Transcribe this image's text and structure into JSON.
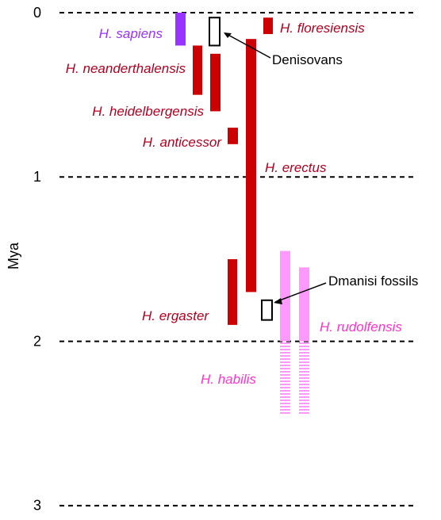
{
  "chart_data": {
    "type": "range-bar",
    "ylabel": "Mya",
    "ylim": [
      0,
      3
    ],
    "yticks": [
      0,
      1,
      2,
      3
    ],
    "colors": {
      "red": "#cc0000",
      "purple": "#9933ff",
      "pink": "#ff99ff",
      "pink_text": "#ff33cc",
      "red_text": "#b00020",
      "purple_text": "#9933ff"
    },
    "bars": [
      {
        "id": "sapiens",
        "start": 0.0,
        "end": 0.2,
        "color": "purple",
        "fill": "solid"
      },
      {
        "id": "neanderthalensis",
        "start": 0.2,
        "end": 0.5,
        "color": "red",
        "fill": "solid"
      },
      {
        "id": "heidelbergensis",
        "start": 0.25,
        "end": 0.6,
        "color": "red",
        "fill": "solid"
      },
      {
        "id": "anticessor",
        "start": 0.7,
        "end": 0.8,
        "color": "red",
        "fill": "solid"
      },
      {
        "id": "ergaster",
        "start": 1.5,
        "end": 1.9,
        "color": "red",
        "fill": "solid"
      },
      {
        "id": "erectus",
        "start": 0.16,
        "end": 1.7,
        "color": "red",
        "fill": "solid"
      },
      {
        "id": "floresiensis",
        "start": 0.03,
        "end": 0.13,
        "color": "red",
        "fill": "solid"
      },
      {
        "id": "rudolfensis_solid",
        "start": 1.45,
        "end": 2.0,
        "color": "pink",
        "fill": "solid"
      },
      {
        "id": "rudolfensis_hatch",
        "start": 2.0,
        "end": 2.45,
        "color": "pink",
        "fill": "hatched"
      },
      {
        "id": "habilis_solid",
        "start": 1.55,
        "end": 2.0,
        "color": "pink",
        "fill": "solid"
      },
      {
        "id": "habilis_hatch",
        "start": 2.0,
        "end": 2.45,
        "color": "pink",
        "fill": "hatched"
      },
      {
        "id": "denisovans",
        "start": 0.03,
        "end": 0.2,
        "color": "outline",
        "fill": "none"
      },
      {
        "id": "dmanisi",
        "start": 1.75,
        "end": 1.87,
        "color": "outline",
        "fill": "none"
      }
    ],
    "labels": {
      "sapiens": "H. sapiens",
      "neanderthalensis": "H. neanderthalensis",
      "heidelbergensis": "H. heidelbergensis",
      "anticessor": "H. anticessor",
      "erectus": "H. erectus",
      "floresiensis": "H. floresiensis",
      "ergaster": "H. ergaster",
      "rudolfensis": "H. rudolfensis",
      "habilis": "H. habilis"
    },
    "annotations": {
      "denisovans": "Denisovans",
      "dmanisi": "Dmanisi fossils"
    }
  }
}
